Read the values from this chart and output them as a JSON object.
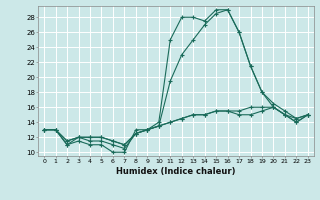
{
  "xlabel": "Humidex (Indice chaleur)",
  "ylabel": "",
  "bg_color": "#cce8e8",
  "line_color": "#1a6b5a",
  "grid_color": "#ffffff",
  "xlim": [
    -0.5,
    23.5
  ],
  "ylim": [
    9.5,
    29.5
  ],
  "xticks": [
    0,
    1,
    2,
    3,
    4,
    5,
    6,
    7,
    8,
    9,
    10,
    11,
    12,
    13,
    14,
    15,
    16,
    17,
    18,
    19,
    20,
    21,
    22,
    23
  ],
  "yticks": [
    10,
    12,
    14,
    16,
    18,
    20,
    22,
    24,
    26,
    28
  ],
  "series": [
    [
      13,
      13,
      11,
      11.5,
      11,
      11,
      10,
      10,
      13,
      13,
      14,
      25,
      28,
      28,
      27.5,
      29,
      29,
      26,
      21.5,
      18,
      16,
      15,
      14,
      15
    ],
    [
      13,
      13,
      11,
      12,
      11.5,
      11.5,
      11,
      10.5,
      12.5,
      13,
      13.5,
      19.5,
      23,
      25,
      27,
      28.5,
      29,
      26,
      21.5,
      18,
      16.5,
      15.5,
      14.5,
      15
    ],
    [
      13,
      13,
      11.5,
      12,
      12,
      12,
      11.5,
      11,
      12.5,
      13,
      13.5,
      14,
      14.5,
      15,
      15,
      15.5,
      15.5,
      15.5,
      16,
      16,
      16,
      15,
      14.5,
      15
    ],
    [
      13,
      13,
      11.5,
      12,
      12,
      12,
      11.5,
      11,
      12.5,
      13,
      13.5,
      14,
      14.5,
      15,
      15,
      15.5,
      15.5,
      15,
      15,
      15.5,
      16,
      15,
      14,
      15
    ]
  ]
}
